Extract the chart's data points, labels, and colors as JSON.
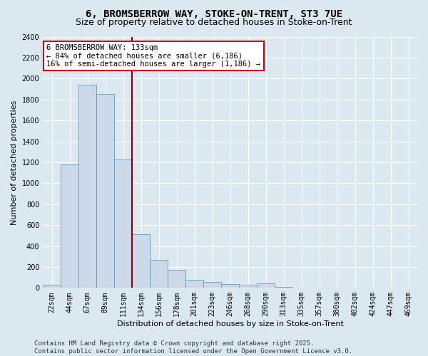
{
  "title_line1": "6, BROMSBERROW WAY, STOKE-ON-TRENT, ST3 7UE",
  "title_line2": "Size of property relative to detached houses in Stoke-on-Trent",
  "xlabel": "Distribution of detached houses by size in Stoke-on-Trent",
  "ylabel": "Number of detached properties",
  "categories": [
    "22sqm",
    "44sqm",
    "67sqm",
    "89sqm",
    "111sqm",
    "134sqm",
    "156sqm",
    "178sqm",
    "201sqm",
    "223sqm",
    "246sqm",
    "268sqm",
    "290sqm",
    "313sqm",
    "335sqm",
    "357sqm",
    "380sqm",
    "402sqm",
    "424sqm",
    "447sqm",
    "469sqm"
  ],
  "values": [
    30,
    1180,
    1940,
    1850,
    1230,
    510,
    265,
    170,
    80,
    55,
    35,
    25,
    40,
    10,
    5,
    2,
    1,
    1,
    1,
    0,
    0
  ],
  "bar_color": "#ccd9e8",
  "bar_edge_color": "#6699bb",
  "vline_color": "#880000",
  "ylim": [
    0,
    2400
  ],
  "yticks": [
    0,
    200,
    400,
    600,
    800,
    1000,
    1200,
    1400,
    1600,
    1800,
    2000,
    2200,
    2400
  ],
  "annotation_title": "6 BROMSBERROW WAY: 133sqm",
  "annotation_line1": "← 84% of detached houses are smaller (6,186)",
  "annotation_line2": "16% of semi-detached houses are larger (1,186) →",
  "annotation_box_color": "#ffffff",
  "annotation_box_edge": "#cc0000",
  "footer_line1": "Contains HM Land Registry data © Crown copyright and database right 2025.",
  "footer_line2": "Contains public sector information licensed under the Open Government Licence v3.0.",
  "bg_color": "#dce8f0",
  "plot_bg_color": "#dce8f0",
  "grid_color": "#ffffff",
  "title_fontsize": 10,
  "subtitle_fontsize": 9,
  "axis_label_fontsize": 8,
  "tick_fontsize": 7,
  "footer_fontsize": 6.5,
  "annotation_fontsize": 7.5
}
